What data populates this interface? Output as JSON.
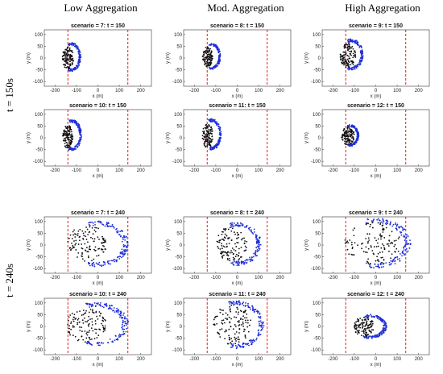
{
  "headers": {
    "columns": [
      "Low Aggregation",
      "Mod. Aggregation",
      "High Aggregation"
    ],
    "rows": [
      "t = 150s",
      "t = 240s"
    ]
  },
  "colors": {
    "edge": "#1f2fd6",
    "core": "#111111",
    "boundary": "#e0201b"
  },
  "chart_data": [
    {
      "type": "scatter",
      "title": "scenario = 7: t = 150",
      "xlabel": "x (m)",
      "ylabel": "y (m)",
      "xlim": [
        -250,
        250
      ],
      "ylim": [
        -120,
        120
      ],
      "xticks": [
        -200,
        -100,
        0,
        100,
        200
      ],
      "yticks": [
        -100,
        -50,
        0,
        50,
        100
      ],
      "vlines": [
        -140,
        140
      ],
      "series": [
        {
          "kind": "edge",
          "cx": -125,
          "cy": 5,
          "rx": 45,
          "ry": 60
        },
        {
          "kind": "core",
          "cx": -140,
          "cy": 0,
          "rx": 28,
          "ry": 50
        }
      ]
    },
    {
      "type": "scatter",
      "title": "scenario = 8: t = 150",
      "xlabel": "x (m)",
      "ylabel": "y (m)",
      "xlim": [
        -250,
        250
      ],
      "ylim": [
        -120,
        120
      ],
      "xticks": [
        -200,
        -100,
        0,
        100,
        200
      ],
      "yticks": [
        -100,
        -50,
        0,
        50,
        100
      ],
      "vlines": [
        -140,
        140
      ],
      "series": [
        {
          "kind": "edge",
          "cx": -120,
          "cy": 8,
          "rx": 42,
          "ry": 55
        },
        {
          "kind": "core",
          "cx": -138,
          "cy": 5,
          "rx": 25,
          "ry": 45
        }
      ]
    },
    {
      "type": "scatter",
      "title": "scenario = 9: t = 150",
      "xlabel": "x (m)",
      "ylabel": "y (m)",
      "xlim": [
        -250,
        250
      ],
      "ylim": [
        -120,
        120
      ],
      "xticks": [
        -200,
        -100,
        0,
        100,
        200
      ],
      "yticks": [
        -100,
        -50,
        0,
        50,
        100
      ],
      "vlines": [
        -140,
        140
      ],
      "series": [
        {
          "kind": "edge",
          "cx": -115,
          "cy": 15,
          "rx": 55,
          "ry": 65
        },
        {
          "kind": "core",
          "cx": -130,
          "cy": 10,
          "rx": 38,
          "ry": 55
        }
      ]
    },
    {
      "type": "scatter",
      "title": "scenario = 10: t = 150",
      "xlabel": "x (m)",
      "ylabel": "y (m)",
      "xlim": [
        -250,
        250
      ],
      "ylim": [
        -120,
        120
      ],
      "xticks": [
        -200,
        -100,
        0,
        100,
        200
      ],
      "yticks": [
        -100,
        -50,
        0,
        50,
        100
      ],
      "vlines": [
        -140,
        140
      ],
      "series": [
        {
          "kind": "edge",
          "cx": -122,
          "cy": 12,
          "rx": 45,
          "ry": 65
        },
        {
          "kind": "core",
          "cx": -140,
          "cy": 5,
          "rx": 25,
          "ry": 52
        }
      ]
    },
    {
      "type": "scatter",
      "title": "scenario = 11: t = 150",
      "xlabel": "x (m)",
      "ylabel": "y (m)",
      "xlim": [
        -250,
        250
      ],
      "ylim": [
        -120,
        120
      ],
      "xticks": [
        -200,
        -100,
        0,
        100,
        200
      ],
      "yticks": [
        -100,
        -50,
        0,
        50,
        100
      ],
      "vlines": [
        -140,
        140
      ],
      "series": [
        {
          "kind": "edge",
          "cx": -120,
          "cy": 15,
          "rx": 45,
          "ry": 65
        },
        {
          "kind": "core",
          "cx": -138,
          "cy": 8,
          "rx": 26,
          "ry": 55
        }
      ]
    },
    {
      "type": "scatter",
      "title": "scenario = 12: t = 150",
      "xlabel": "x (m)",
      "ylabel": "y (m)",
      "xlim": [
        -250,
        250
      ],
      "ylim": [
        -120,
        120
      ],
      "xticks": [
        -200,
        -100,
        0,
        100,
        200
      ],
      "yticks": [
        -100,
        -50,
        0,
        50,
        100
      ],
      "vlines": [
        -140,
        140
      ],
      "series": [
        {
          "kind": "edge",
          "cx": -120,
          "cy": 10,
          "rx": 40,
          "ry": 45
        },
        {
          "kind": "core",
          "cx": -130,
          "cy": 8,
          "rx": 32,
          "ry": 42
        }
      ]
    },
    {
      "type": "scatter",
      "title": "scenario = 7: t = 240",
      "xlabel": "x (m)",
      "ylabel": "y (m)",
      "xlim": [
        -250,
        250
      ],
      "ylim": [
        -120,
        120
      ],
      "xticks": [
        -200,
        -100,
        0,
        100,
        200
      ],
      "yticks": [
        -100,
        -50,
        0,
        50,
        100
      ],
      "vlines": [
        -140,
        140
      ],
      "series": [
        {
          "kind": "edge",
          "cx": -5,
          "cy": 5,
          "rx": 145,
          "ry": 95
        },
        {
          "kind": "core",
          "cx": -50,
          "cy": 5,
          "rx": 95,
          "ry": 85
        }
      ]
    },
    {
      "type": "scatter",
      "title": "scenario = 8: t = 240",
      "xlabel": "x (m)",
      "ylabel": "y (m)",
      "xlim": [
        -250,
        250
      ],
      "ylim": [
        -120,
        120
      ],
      "xticks": [
        -200,
        -100,
        0,
        100,
        200
      ],
      "yticks": [
        -100,
        -50,
        0,
        50,
        100
      ],
      "vlines": [
        -140,
        140
      ],
      "series": [
        {
          "kind": "edge",
          "cx": 0,
          "cy": 5,
          "rx": 110,
          "ry": 90
        },
        {
          "kind": "core",
          "cx": -25,
          "cy": 5,
          "rx": 75,
          "ry": 80
        }
      ]
    },
    {
      "type": "scatter",
      "title": "scenario = 9: t = 240",
      "xlabel": "x (m)",
      "ylabel": "y (m)",
      "xlim": [
        -250,
        250
      ],
      "ylim": [
        -120,
        120
      ],
      "xticks": [
        -200,
        -100,
        0,
        100,
        200
      ],
      "yticks": [
        -100,
        -50,
        0,
        50,
        100
      ],
      "vlines": [
        -140,
        140
      ],
      "series": [
        {
          "kind": "edge",
          "cx": -5,
          "cy": 8,
          "rx": 165,
          "ry": 105
        },
        {
          "kind": "core",
          "cx": -15,
          "cy": 8,
          "rx": 140,
          "ry": 95
        }
      ]
    },
    {
      "type": "scatter",
      "title": "scenario = 10: t = 240",
      "xlabel": "x (m)",
      "ylabel": "y (m)",
      "xlim": [
        -250,
        250
      ],
      "ylim": [
        -120,
        120
      ],
      "xticks": [
        -200,
        -100,
        0,
        100,
        200
      ],
      "yticks": [
        -100,
        -50,
        0,
        50,
        100
      ],
      "vlines": [
        -140,
        140
      ],
      "series": [
        {
          "kind": "edge",
          "cx": -10,
          "cy": 10,
          "rx": 150,
          "ry": 90
        },
        {
          "kind": "core",
          "cx": -55,
          "cy": 8,
          "rx": 100,
          "ry": 80
        }
      ]
    },
    {
      "type": "scatter",
      "title": "scenario = 11: t = 240",
      "xlabel": "x (m)",
      "ylabel": "y (m)",
      "xlim": [
        -250,
        250
      ],
      "ylim": [
        -120,
        120
      ],
      "xticks": [
        -200,
        -100,
        0,
        100,
        200
      ],
      "yticks": [
        -100,
        -50,
        0,
        50,
        100
      ],
      "vlines": [
        -140,
        140
      ],
      "series": [
        {
          "kind": "edge",
          "cx": 0,
          "cy": 8,
          "rx": 125,
          "ry": 100
        },
        {
          "kind": "core",
          "cx": -25,
          "cy": 8,
          "rx": 95,
          "ry": 90
        }
      ]
    },
    {
      "type": "scatter",
      "title": "scenario = 12: t = 240",
      "xlabel": "x (m)",
      "ylabel": "y (m)",
      "xlim": [
        -250,
        250
      ],
      "ylim": [
        -120,
        120
      ],
      "xticks": [
        -200,
        -100,
        0,
        100,
        200
      ],
      "yticks": [
        -100,
        -50,
        0,
        50,
        100
      ],
      "vlines": [
        -140,
        140
      ],
      "series": [
        {
          "kind": "edge",
          "cx": -30,
          "cy": 0,
          "rx": 80,
          "ry": 50
        },
        {
          "kind": "core",
          "cx": -55,
          "cy": 0,
          "rx": 50,
          "ry": 45
        }
      ]
    }
  ]
}
